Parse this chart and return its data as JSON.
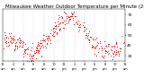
{
  "title": "Milwaukee Weather Outdoor Temperature per Minute (24 Hours)",
  "title_fontsize": 4.0,
  "bg_color": "#ffffff",
  "dot_color": "#ff0000",
  "legend_box_color": "#ff0000",
  "ylim": [
    25,
    75
  ],
  "yticks": [
    30,
    40,
    50,
    60,
    70
  ],
  "ytick_fontsize": 3.2,
  "xtick_fontsize": 2.5,
  "grid_color": "#999999",
  "dot_size": 0.5,
  "num_points": 1440,
  "seed": 7
}
